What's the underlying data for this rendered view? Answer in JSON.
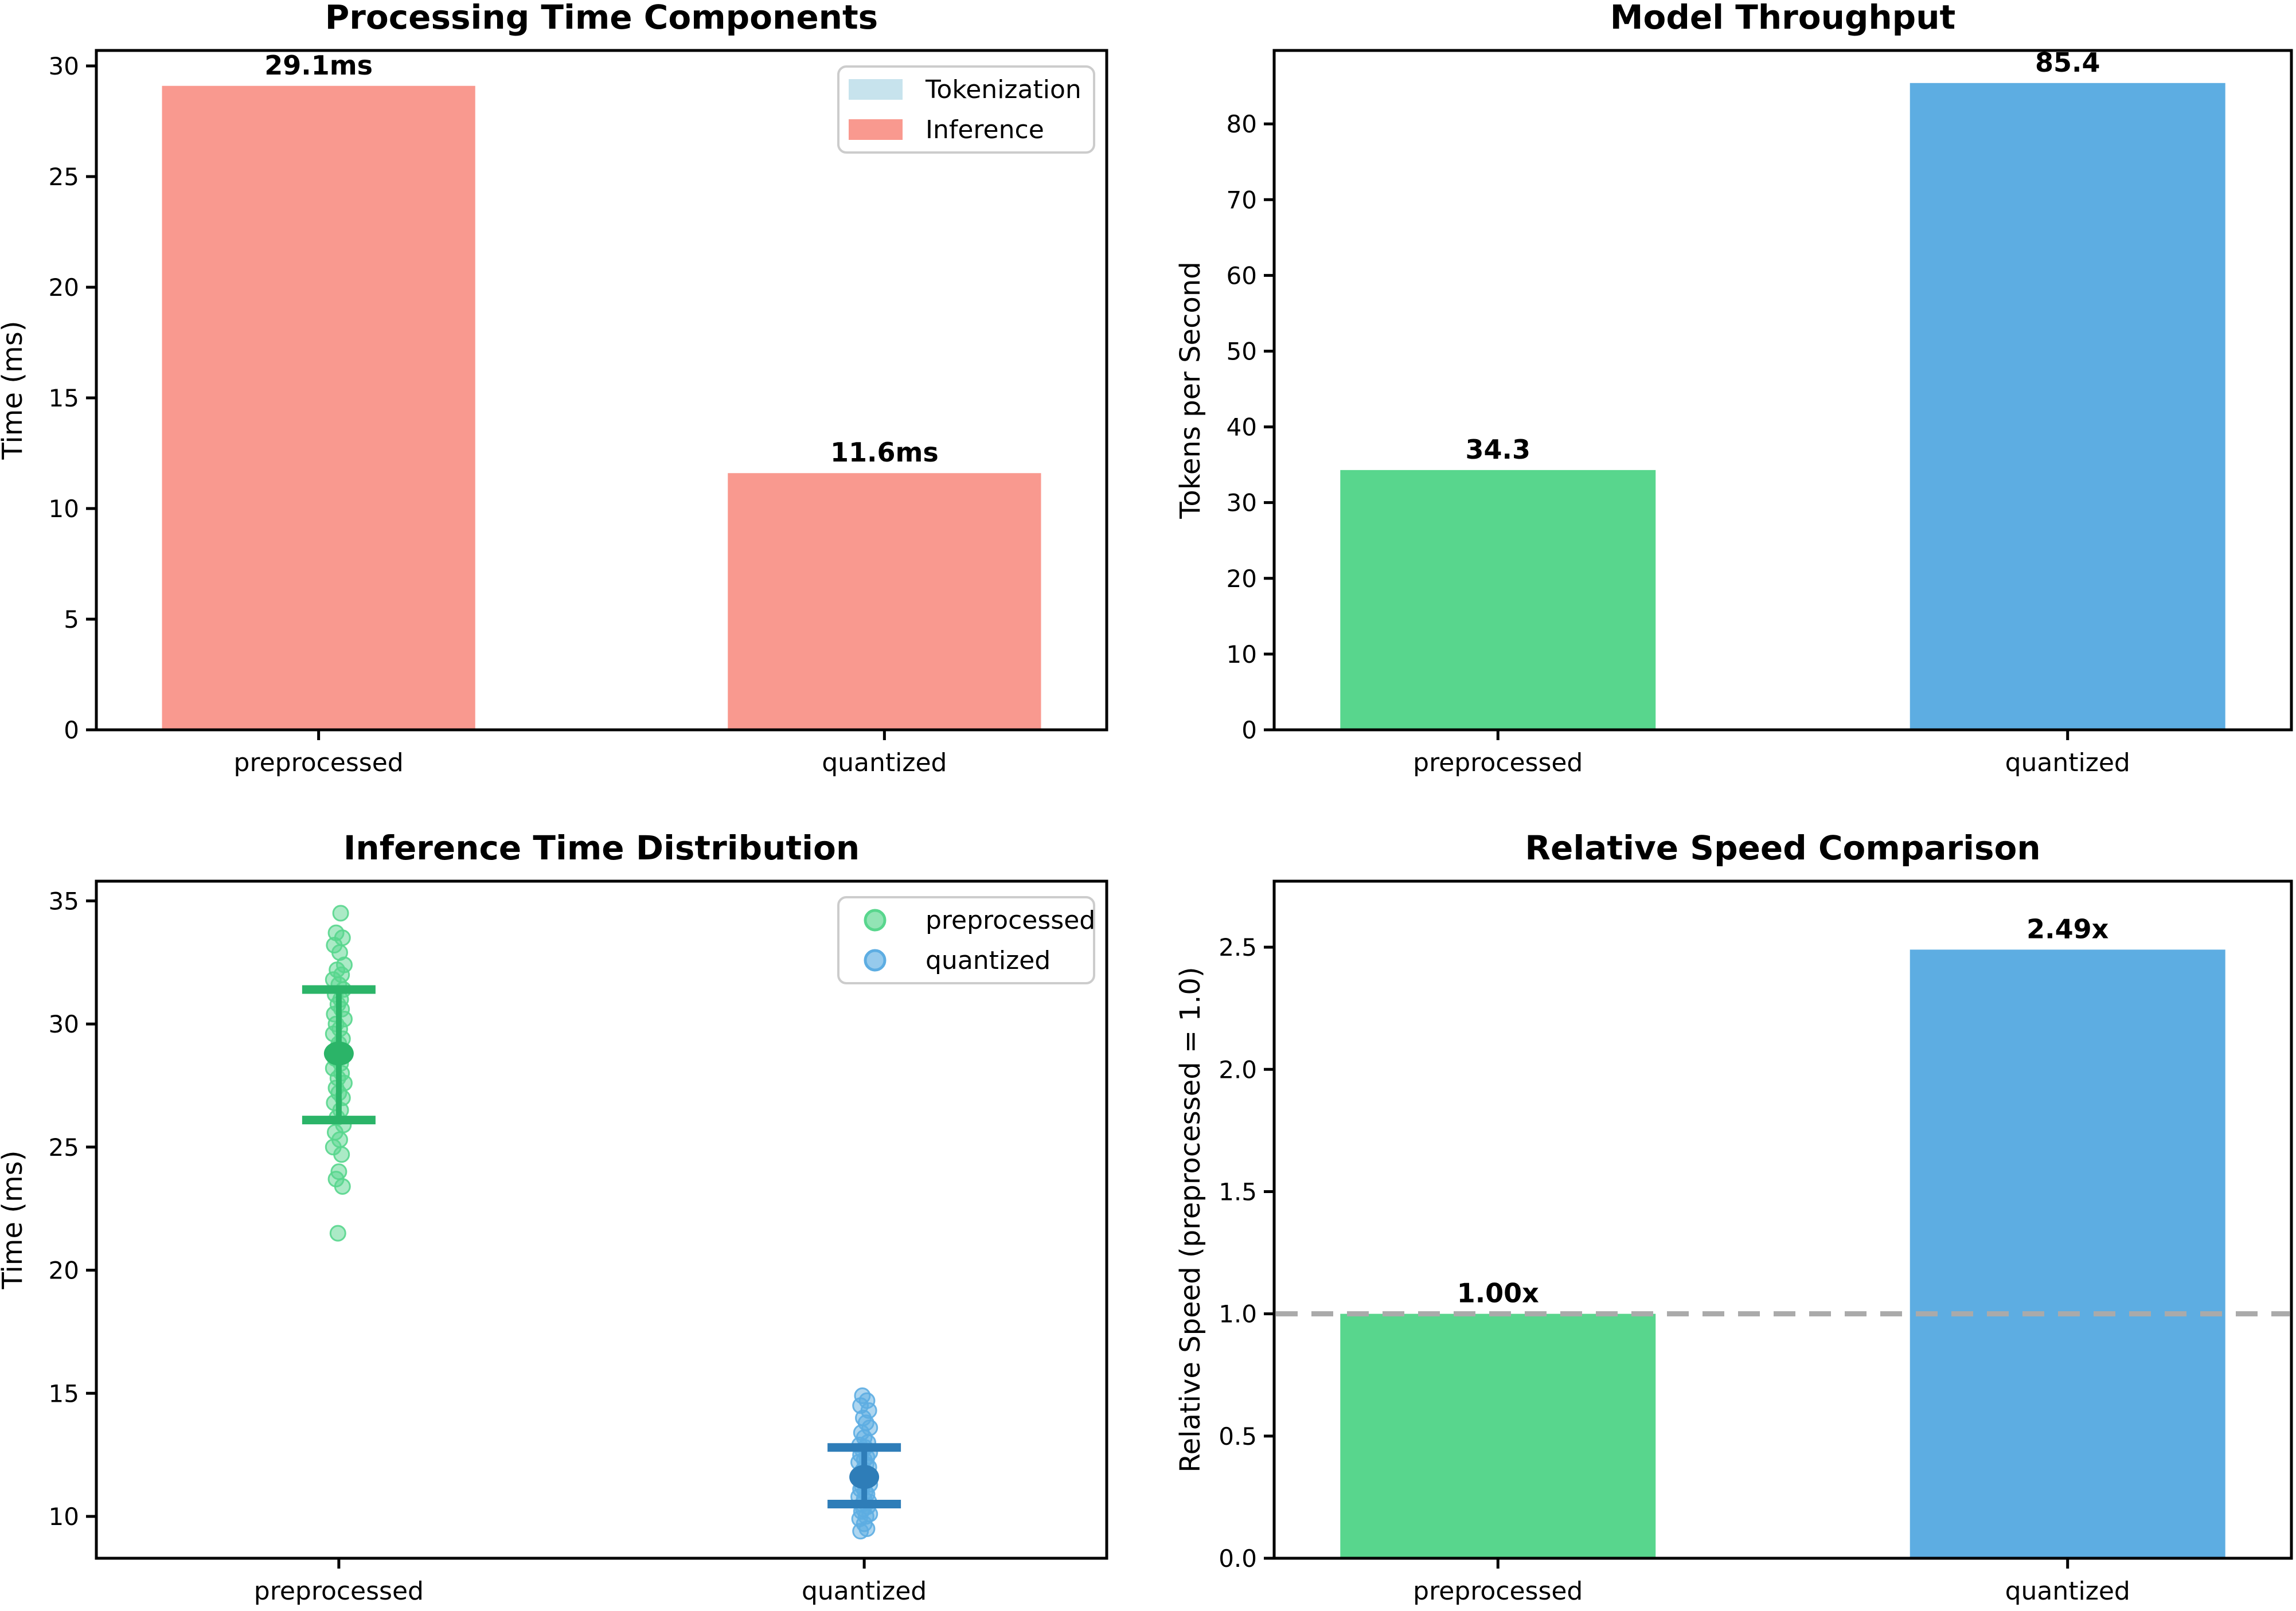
{
  "figure": {
    "background": "#ffffff"
  },
  "chart_data": [
    {
      "id": "processing-time-components",
      "type": "bar",
      "title": "Processing Time Components",
      "ylabel": "Time (ms)",
      "categories": [
        "preprocessed",
        "quantized"
      ],
      "series": [
        {
          "name": "Tokenization",
          "color": "#C7E3ED",
          "values": [
            0.0,
            0.0
          ]
        },
        {
          "name": "Inference",
          "color": "#F9998F",
          "values": [
            29.1,
            11.6
          ]
        }
      ],
      "totals": [
        29.1,
        11.6
      ],
      "bar_labels": [
        "29.1ms",
        "11.6ms"
      ],
      "ylim": [
        0,
        30.7
      ],
      "yticks": [
        0,
        5,
        10,
        15,
        20,
        25,
        30
      ],
      "ytick_labels": [
        "0",
        "5",
        "10",
        "15",
        "20",
        "25",
        "30"
      ],
      "grid": false,
      "legend": {
        "position": "top-right",
        "entries": [
          {
            "label": "Tokenization",
            "color": "#C7E3ED",
            "marker": "patch"
          },
          {
            "label": "Inference",
            "color": "#F9998F",
            "marker": "patch"
          }
        ]
      }
    },
    {
      "id": "model-throughput",
      "type": "bar",
      "title": "Model Throughput",
      "ylabel": "Tokens per Second",
      "categories": [
        "preprocessed",
        "quantized"
      ],
      "values": [
        34.3,
        85.4
      ],
      "bar_colors": [
        "#58D68D",
        "#5DADE2"
      ],
      "bar_labels": [
        "34.3",
        "85.4"
      ],
      "ylim": [
        0,
        89.7
      ],
      "yticks": [
        0,
        10,
        20,
        30,
        40,
        50,
        60,
        70,
        80
      ],
      "ytick_labels": [
        "0",
        "10",
        "20",
        "30",
        "40",
        "50",
        "60",
        "70",
        "80"
      ],
      "grid": false
    },
    {
      "id": "inference-time-distribution",
      "type": "scatter",
      "title": "Inference Time Distribution",
      "ylabel": "Time (ms)",
      "categories": [
        "preprocessed",
        "quantized"
      ],
      "ylim": [
        8.3,
        35.8
      ],
      "yticks": [
        10,
        15,
        20,
        25,
        30,
        35
      ],
      "ytick_labels": [
        "10",
        "15",
        "20",
        "25",
        "30",
        "35"
      ],
      "grid": false,
      "series": [
        {
          "name": "preprocessed",
          "color": "#58D68D",
          "dark_color": "#2BB468",
          "mean": 28.8,
          "err_low": 26.1,
          "err_high": 31.4,
          "points": [
            34.5,
            33.7,
            33.5,
            33.2,
            32.9,
            32.4,
            32.2,
            32.0,
            31.8,
            31.6,
            31.4,
            31.2,
            31.0,
            30.8,
            30.6,
            30.4,
            30.2,
            30.0,
            29.8,
            29.6,
            29.4,
            29.2,
            29.0,
            28.8,
            28.6,
            28.4,
            28.2,
            28.0,
            27.8,
            27.6,
            27.4,
            27.2,
            27.0,
            26.8,
            26.5,
            26.2,
            25.9,
            25.6,
            25.3,
            25.0,
            24.7,
            24.0,
            23.7,
            23.4,
            21.5
          ],
          "jitter": [
            2,
            -3,
            4,
            -5,
            1,
            6,
            -2,
            3,
            -6,
            0,
            5,
            -4,
            2,
            -1,
            3,
            -5,
            6,
            -3,
            1,
            -6,
            4,
            0,
            -2,
            5,
            -4,
            2,
            -6,
            3,
            -1,
            6,
            -3,
            0,
            4,
            -5,
            2,
            -2,
            5,
            -4,
            1,
            -6,
            3,
            0,
            -3,
            4,
            -1
          ]
        },
        {
          "name": "quantized",
          "color": "#5DADE2",
          "dark_color": "#2E7DB8",
          "mean": 11.6,
          "err_low": 10.5,
          "err_high": 12.8,
          "points": [
            14.9,
            14.7,
            14.5,
            14.3,
            14.0,
            13.8,
            13.6,
            13.4,
            13.2,
            13.0,
            12.9,
            12.8,
            12.7,
            12.6,
            12.5,
            12.4,
            12.3,
            12.2,
            12.1,
            12.0,
            11.9,
            11.8,
            11.7,
            11.6,
            11.5,
            11.4,
            11.3,
            11.2,
            11.1,
            11.0,
            10.9,
            10.8,
            10.7,
            10.6,
            10.5,
            10.4,
            10.3,
            10.2,
            10.1,
            10.0,
            9.9,
            9.7,
            9.5,
            9.4
          ],
          "jitter": [
            -2,
            3,
            -4,
            5,
            -1,
            2,
            6,
            -3,
            0,
            4,
            -5,
            1,
            -2,
            6,
            -4,
            3,
            0,
            -6,
            2,
            5,
            -1,
            -3,
            4,
            0,
            -5,
            2,
            6,
            -2,
            -4,
            1,
            3,
            -6,
            0,
            5,
            -2,
            4,
            -1,
            -3,
            6,
            2,
            -5,
            0,
            3,
            -4
          ]
        }
      ],
      "legend": {
        "position": "top-right",
        "entries": [
          {
            "label": "preprocessed",
            "color": "#58D68D",
            "marker": "circle"
          },
          {
            "label": "quantized",
            "color": "#5DADE2",
            "marker": "circle"
          }
        ]
      }
    },
    {
      "id": "relative-speed-comparison",
      "type": "bar",
      "title": "Relative Speed Comparison",
      "ylabel": "Relative Speed (preprocessed = 1.0)",
      "categories": [
        "preprocessed",
        "quantized"
      ],
      "values": [
        1.0,
        2.49
      ],
      "bar_colors": [
        "#58D68D",
        "#5DADE2"
      ],
      "bar_labels": [
        "1.00x",
        "2.49x"
      ],
      "ylim": [
        0,
        2.77
      ],
      "yticks": [
        0.0,
        0.5,
        1.0,
        1.5,
        2.0,
        2.5
      ],
      "ytick_labels": [
        "0.0",
        "0.5",
        "1.0",
        "1.5",
        "2.0",
        "2.5"
      ],
      "grid": false,
      "hline": {
        "y": 1.0,
        "color": "#AAAAAA",
        "style": "dashed"
      }
    }
  ]
}
